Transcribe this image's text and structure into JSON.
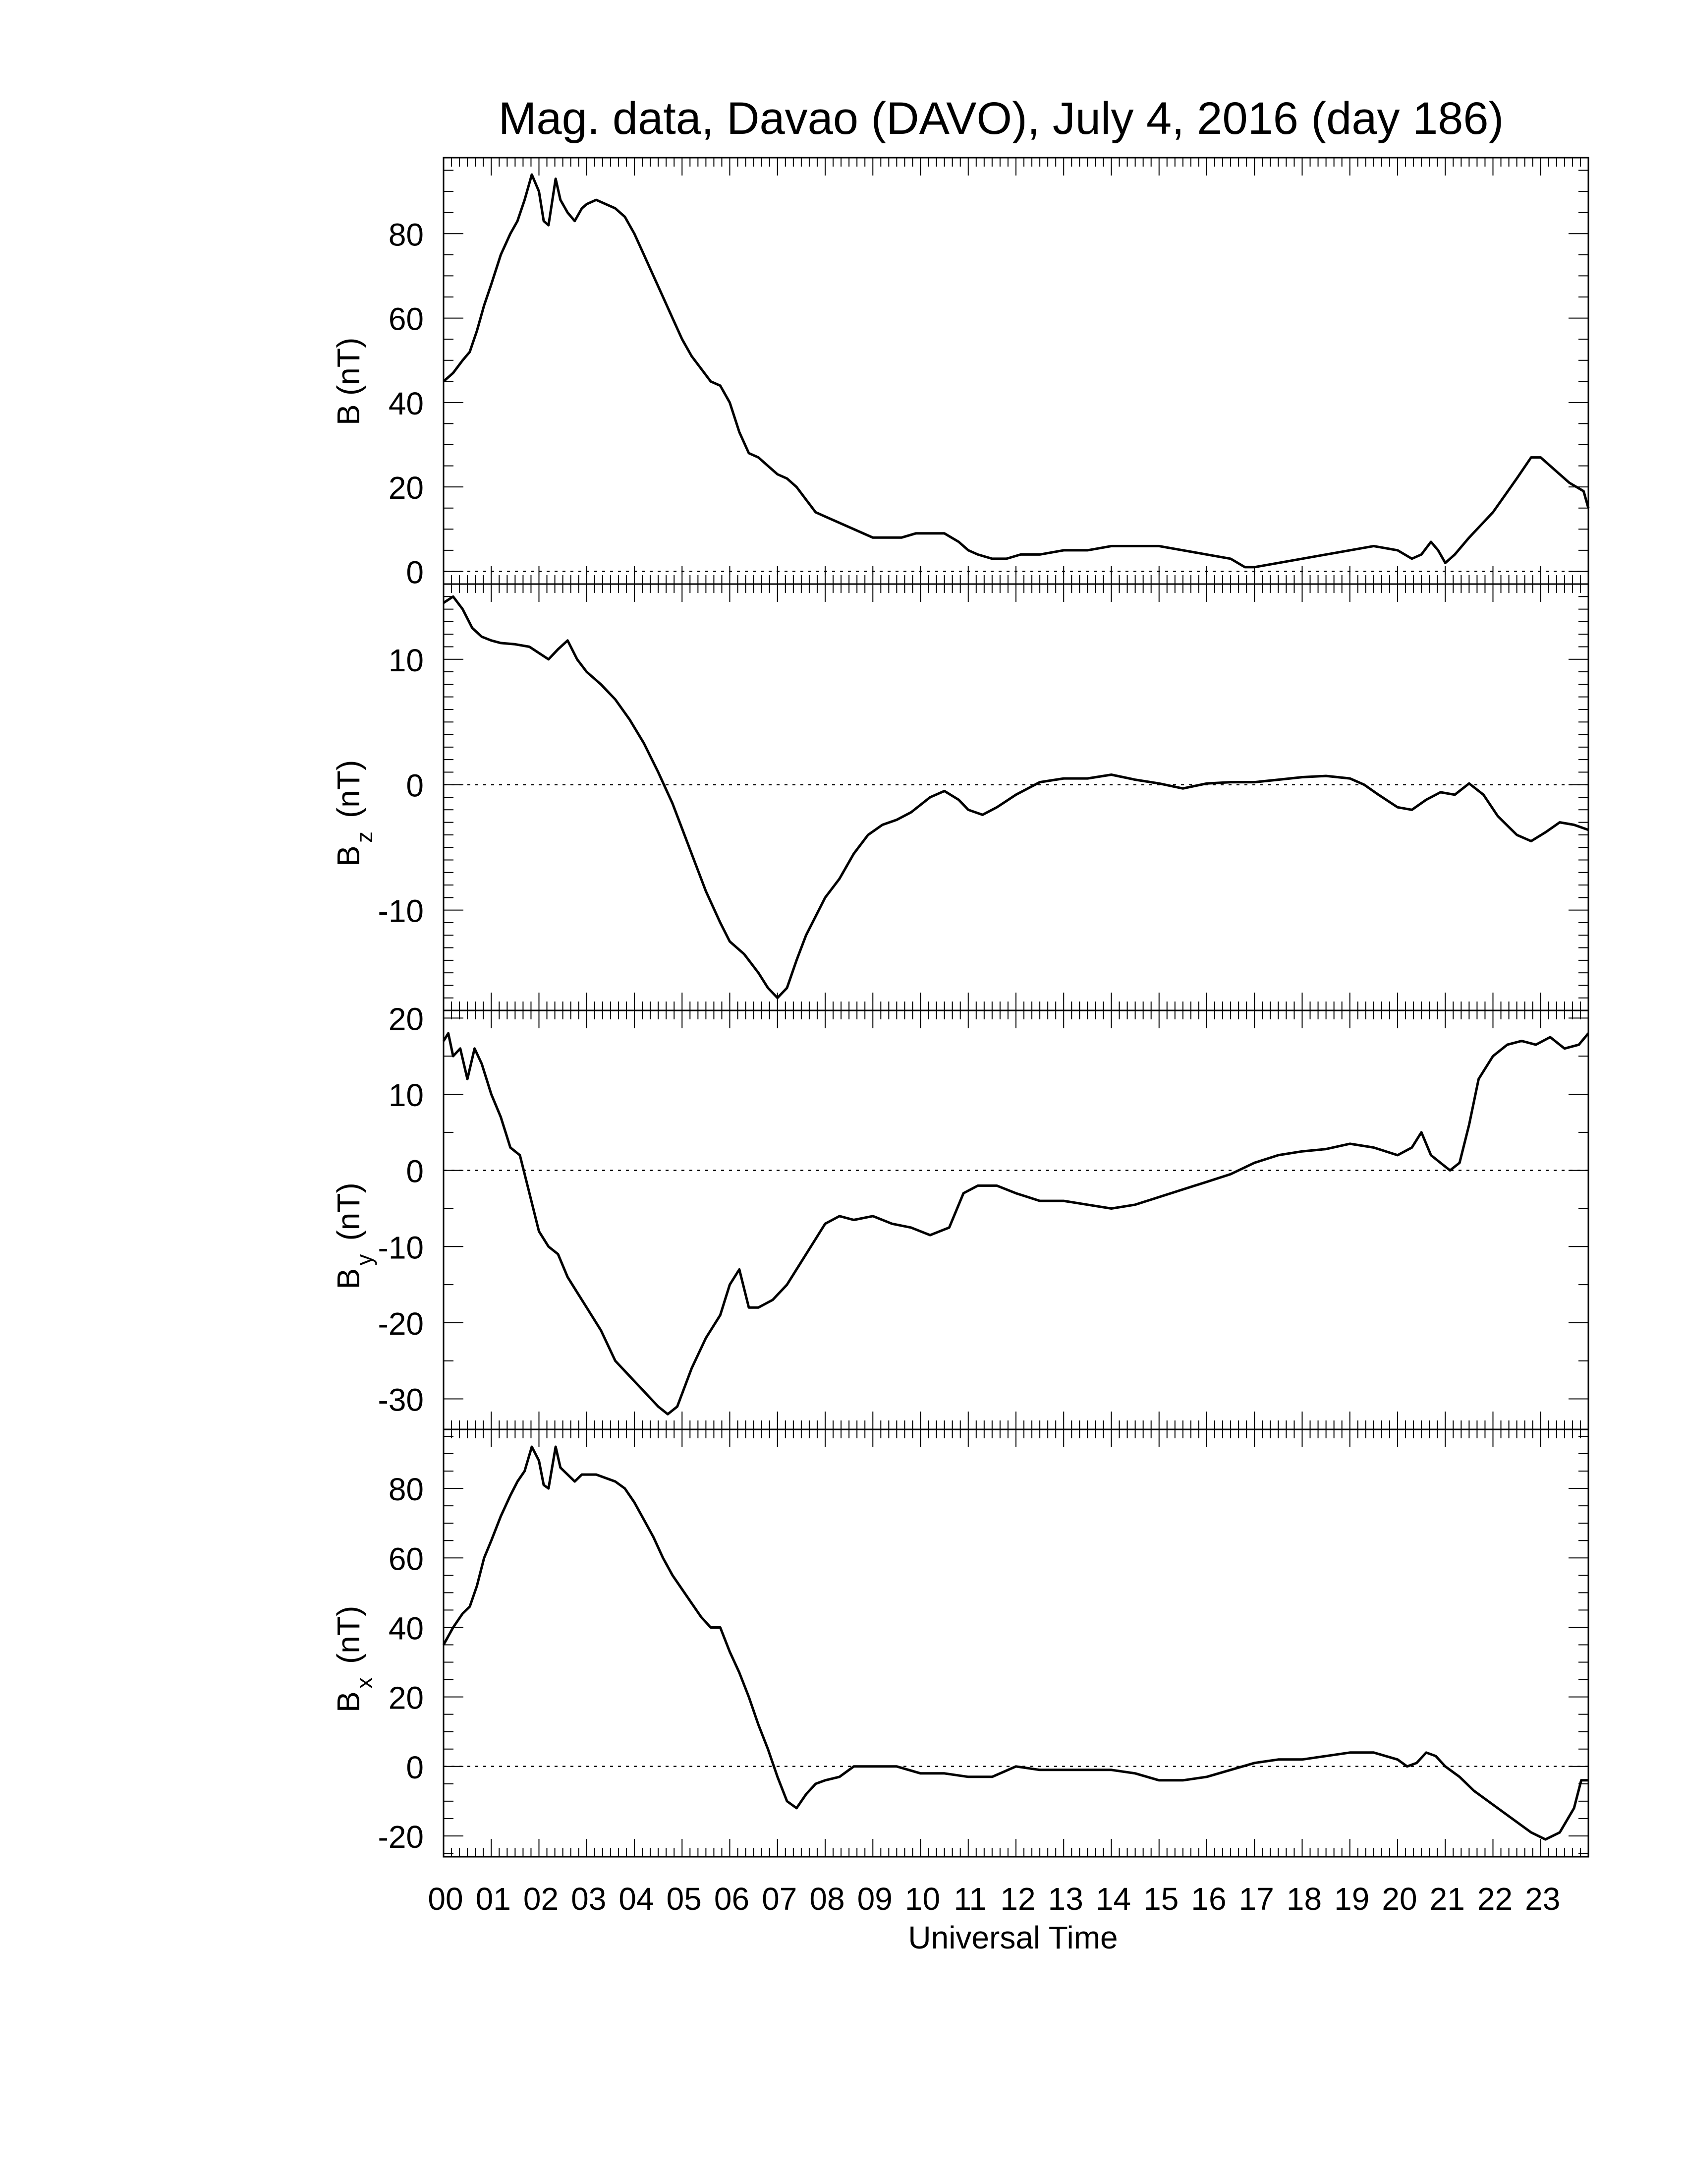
{
  "chart_data": {
    "type": "line",
    "title": "Mag. data, Davao (DAVO), July 4, 2016 (day 186)",
    "xlabel": "Universal Time",
    "xlim": [
      0,
      24
    ],
    "x_tick_labels": [
      "00",
      "01",
      "02",
      "03",
      "04",
      "05",
      "06",
      "07",
      "08",
      "09",
      "10",
      "11",
      "12",
      "13",
      "14",
      "15",
      "16",
      "17",
      "18",
      "19",
      "20",
      "21",
      "22",
      "23"
    ],
    "zero_reference_line": "dotted",
    "panels": [
      {
        "ylabel_main": "B",
        "ylabel_sub": "",
        "ylabel_unit": "(nT)",
        "ylim": [
          -3,
          98
        ],
        "y_ticks": [
          0,
          20,
          40,
          60,
          80
        ],
        "y_tick_labels": [
          "0",
          "20",
          "40",
          "60",
          "80"
        ],
        "series": [
          {
            "x": [
              0,
              0.2,
              0.4,
              0.55,
              0.7,
              0.85,
              1.0,
              1.2,
              1.4,
              1.55,
              1.7,
              1.85,
              2.0,
              2.1,
              2.2,
              2.35,
              2.45,
              2.6,
              2.75,
              2.9,
              3.0,
              3.2,
              3.4,
              3.6,
              3.8,
              4.0,
              4.2,
              4.4,
              4.6,
              4.8,
              5.0,
              5.2,
              5.4,
              5.6,
              5.8,
              6.0,
              6.2,
              6.4,
              6.6,
              6.8,
              7.0,
              7.2,
              7.4,
              7.6,
              7.8,
              8.0,
              8.2,
              8.4,
              8.6,
              8.8,
              9.0,
              9.3,
              9.6,
              9.9,
              10.2,
              10.5,
              10.8,
              11.0,
              11.2,
              11.5,
              11.8,
              12.1,
              12.5,
              13.0,
              13.5,
              14.0,
              14.5,
              15.0,
              15.5,
              16.0,
              16.5,
              16.8,
              17.0,
              17.5,
              18.0,
              18.5,
              19.0,
              19.5,
              20.0,
              20.3,
              20.5,
              20.7,
              20.85,
              21.0,
              21.2,
              21.5,
              22.0,
              22.5,
              22.8,
              23.0,
              23.3,
              23.6,
              23.9,
              24.0
            ],
            "y": [
              45,
              47,
              50,
              52,
              57,
              63,
              68,
              75,
              80,
              83,
              88,
              94,
              90,
              83,
              82,
              93,
              88,
              85,
              83,
              86,
              87,
              88,
              87,
              86,
              84,
              80,
              75,
              70,
              65,
              60,
              55,
              51,
              48,
              45,
              44,
              40,
              33,
              28,
              27,
              25,
              23,
              22,
              20,
              17,
              14,
              13,
              12,
              11,
              10,
              9,
              8,
              8,
              8,
              9,
              9,
              9,
              7,
              5,
              4,
              3,
              3,
              4,
              4,
              5,
              5,
              6,
              6,
              6,
              5,
              4,
              3,
              1,
              1,
              2,
              3,
              4,
              5,
              6,
              5,
              3,
              4,
              7,
              5,
              2,
              4,
              8,
              14,
              22,
              27,
              27,
              24,
              21,
              19,
              15
            ]
          }
        ]
      },
      {
        "ylabel_main": "B",
        "ylabel_sub": "z",
        "ylabel_unit": "(nT)",
        "ylim": [
          -18,
          16
        ],
        "y_ticks": [
          -10,
          0,
          10
        ],
        "y_tick_labels": [
          "-10",
          "0",
          "10"
        ],
        "series": [
          {
            "x": [
              0,
              0.2,
              0.4,
              0.6,
              0.8,
              1.0,
              1.2,
              1.5,
              1.8,
              2.0,
              2.2,
              2.4,
              2.6,
              2.8,
              3.0,
              3.3,
              3.6,
              3.9,
              4.2,
              4.5,
              4.8,
              5.0,
              5.2,
              5.5,
              5.8,
              6.0,
              6.3,
              6.6,
              6.8,
              7.0,
              7.2,
              7.4,
              7.6,
              7.8,
              8.0,
              8.3,
              8.6,
              8.9,
              9.2,
              9.5,
              9.8,
              10.2,
              10.5,
              10.8,
              11.0,
              11.3,
              11.6,
              12.0,
              12.5,
              13.0,
              13.5,
              14.0,
              14.5,
              15.0,
              15.5,
              16.0,
              16.5,
              17.0,
              17.5,
              18.0,
              18.5,
              19.0,
              19.3,
              19.6,
              20.0,
              20.3,
              20.6,
              20.9,
              21.2,
              21.5,
              21.8,
              22.1,
              22.5,
              22.8,
              23.1,
              23.4,
              23.7,
              24.0
            ],
            "y": [
              14.5,
              15,
              14,
              12.5,
              11.8,
              11.5,
              11.3,
              11.2,
              11.0,
              10.5,
              10.0,
              10.8,
              11.5,
              10,
              9,
              8,
              6.8,
              5.2,
              3.3,
              1.0,
              -1.5,
              -3.5,
              -5.5,
              -8.5,
              -11,
              -12.5,
              -13.5,
              -15,
              -16.2,
              -17,
              -16.2,
              -14,
              -12,
              -10.5,
              -9,
              -7.5,
              -5.5,
              -4,
              -3.2,
              -2.8,
              -2.2,
              -1,
              -0.5,
              -1.2,
              -2,
              -2.4,
              -1.8,
              -0.8,
              0.2,
              0.5,
              0.5,
              0.8,
              0.4,
              0.1,
              -0.3,
              0.1,
              0.2,
              0.2,
              0.4,
              0.6,
              0.7,
              0.5,
              0,
              -0.8,
              -1.8,
              -2,
              -1.2,
              -0.6,
              -0.8,
              0.1,
              -0.8,
              -2.5,
              -4,
              -4.5,
              -3.8,
              -3,
              -3.2,
              -3.6
            ]
          }
        ]
      },
      {
        "ylabel_main": "B",
        "ylabel_sub": "y",
        "ylabel_unit": "(nT)",
        "ylim": [
          -34,
          21
        ],
        "y_ticks": [
          -30,
          -20,
          -10,
          0,
          10,
          20
        ],
        "y_tick_labels": [
          "-30",
          "-20",
          "-10",
          "0",
          "10",
          "20"
        ],
        "series": [
          {
            "x": [
              0,
              0.1,
              0.2,
              0.35,
              0.5,
              0.65,
              0.8,
              1.0,
              1.2,
              1.4,
              1.6,
              1.8,
              2.0,
              2.2,
              2.4,
              2.6,
              2.8,
              3.0,
              3.3,
              3.6,
              3.9,
              4.2,
              4.5,
              4.7,
              4.9,
              5.2,
              5.5,
              5.8,
              6.0,
              6.2,
              6.4,
              6.6,
              6.9,
              7.2,
              7.5,
              7.8,
              8.0,
              8.3,
              8.6,
              9.0,
              9.4,
              9.8,
              10.2,
              10.6,
              10.9,
              11.2,
              11.6,
              12.0,
              12.5,
              13.0,
              13.5,
              14.0,
              14.5,
              15.0,
              15.5,
              16.0,
              16.5,
              17.0,
              17.5,
              18.0,
              18.5,
              19.0,
              19.5,
              20.0,
              20.3,
              20.5,
              20.7,
              20.9,
              21.1,
              21.3,
              21.5,
              21.7,
              22.0,
              22.3,
              22.6,
              22.9,
              23.2,
              23.5,
              23.8,
              24.0
            ],
            "y": [
              17,
              18,
              15,
              16,
              12,
              16,
              14,
              10,
              7,
              3,
              2,
              -3,
              -8,
              -10,
              -11,
              -14,
              -16,
              -18,
              -21,
              -25,
              -27,
              -29,
              -31,
              -32,
              -31,
              -26,
              -22,
              -19,
              -15,
              -13,
              -18,
              -18,
              -17,
              -15,
              -12,
              -9,
              -7,
              -6,
              -6.5,
              -6,
              -7,
              -7.5,
              -8.5,
              -7.5,
              -3,
              -2,
              -2,
              -3,
              -4,
              -4,
              -4.5,
              -5,
              -4.5,
              -3.5,
              -2.5,
              -1.5,
              -0.5,
              1,
              2,
              2.5,
              2.8,
              3.5,
              3,
              2,
              3,
              5,
              2,
              1,
              0,
              1,
              6,
              12,
              15,
              16.5,
              17,
              16.5,
              17.5,
              16,
              16.5,
              18
            ]
          }
        ]
      },
      {
        "ylabel_main": "B",
        "ylabel_sub": "x",
        "ylabel_unit": "(nT)",
        "ylim": [
          -26,
          97
        ],
        "y_ticks": [
          -20,
          0,
          20,
          40,
          60,
          80
        ],
        "y_tick_labels": [
          "-20",
          "0",
          "20",
          "40",
          "60",
          "80"
        ],
        "series": [
          {
            "x": [
              0,
              0.2,
              0.4,
              0.55,
              0.7,
              0.85,
              1.0,
              1.2,
              1.4,
              1.55,
              1.7,
              1.85,
              2.0,
              2.1,
              2.2,
              2.35,
              2.45,
              2.6,
              2.75,
              2.9,
              3.0,
              3.2,
              3.4,
              3.6,
              3.8,
              4.0,
              4.2,
              4.4,
              4.6,
              4.8,
              5.0,
              5.2,
              5.4,
              5.6,
              5.8,
              6.0,
              6.2,
              6.4,
              6.6,
              6.8,
              7.0,
              7.2,
              7.4,
              7.6,
              7.8,
              8.0,
              8.3,
              8.6,
              9.0,
              9.5,
              10.0,
              10.5,
              11.0,
              11.5,
              12.0,
              12.5,
              13.0,
              13.5,
              14.0,
              14.5,
              15.0,
              15.5,
              16.0,
              16.5,
              17.0,
              17.5,
              18.0,
              18.5,
              19.0,
              19.5,
              20.0,
              20.2,
              20.4,
              20.6,
              20.8,
              21.0,
              21.3,
              21.6,
              22.0,
              22.4,
              22.8,
              23.1,
              23.4,
              23.7,
              23.85,
              24.0
            ],
            "y": [
              35,
              40,
              44,
              46,
              52,
              60,
              65,
              72,
              78,
              82,
              85,
              92,
              88,
              81,
              80,
              92,
              86,
              84,
              82,
              84,
              84,
              84,
              83,
              82,
              80,
              76,
              71,
              66,
              60,
              55,
              51,
              47,
              43,
              40,
              40,
              33,
              27,
              20,
              12,
              5,
              -3,
              -10,
              -12,
              -8,
              -5,
              -4,
              -3,
              0,
              0,
              0,
              -2,
              -2,
              -3,
              -3,
              0,
              -1,
              -1,
              -1,
              -1,
              -2,
              -4,
              -4,
              -3,
              -1,
              1,
              2,
              2,
              3,
              4,
              4,
              2,
              0,
              1,
              4,
              3,
              0,
              -3,
              -7,
              -11,
              -15,
              -19,
              -21,
              -19,
              -12,
              -4,
              -4
            ]
          }
        ]
      }
    ]
  }
}
